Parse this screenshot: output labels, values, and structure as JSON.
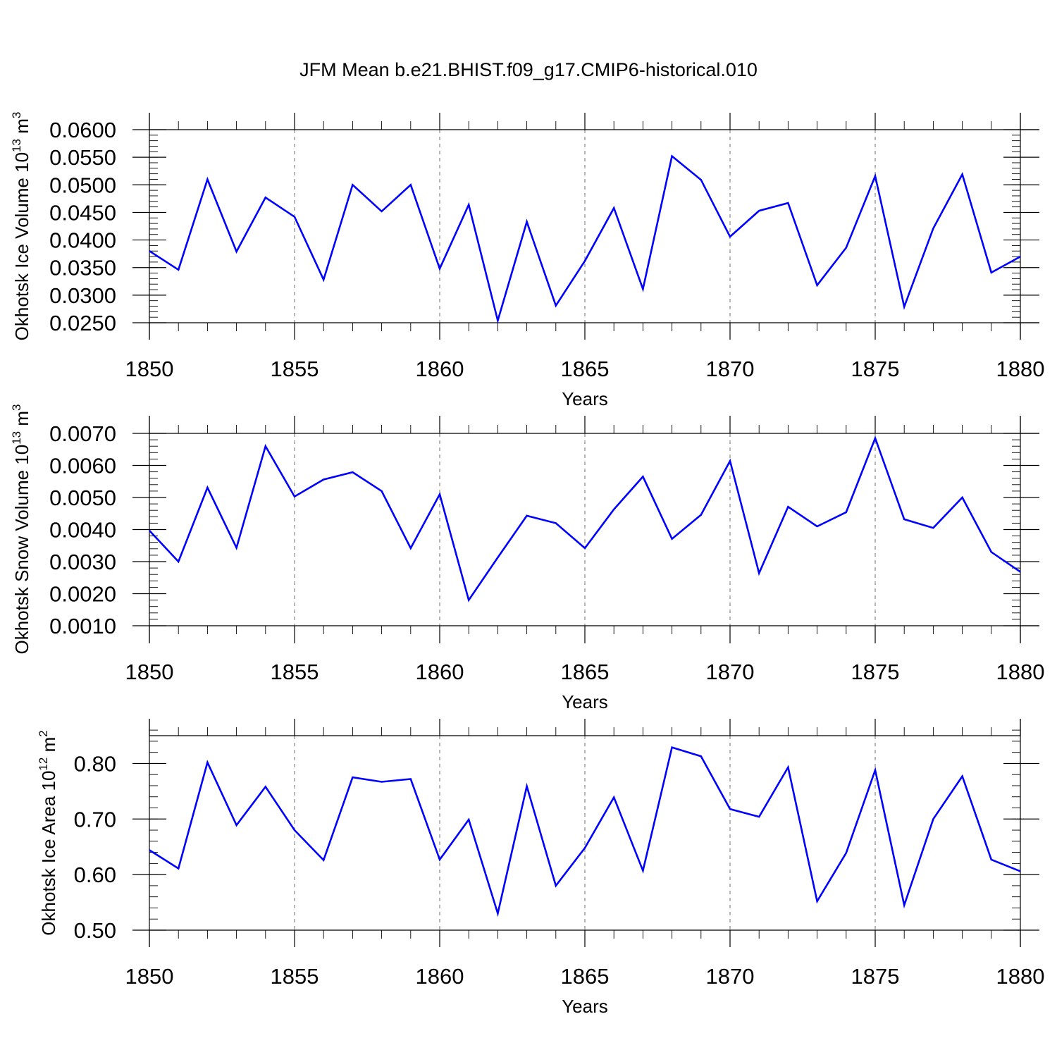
{
  "title": "JFM Mean b.e21.BHIST.f09_g17.CMIP6-historical.010",
  "chart_data": [
    {
      "type": "line",
      "xlabel": "Years",
      "ylabel": "Okhotsk Ice Volume 10",
      "ylabel_exp": "13",
      "ylabel_unit": " m",
      "ylabel_unit_exp": "3",
      "xlim": [
        1850,
        1880
      ],
      "ylim": [
        0.025,
        0.06
      ],
      "x_ticks": [
        1850,
        1855,
        1860,
        1865,
        1870,
        1875,
        1880
      ],
      "x_tick_labels": [
        "1850",
        "1855",
        "1860",
        "1865",
        "1870",
        "1875",
        "1880"
      ],
      "y_ticks": [
        0.025,
        0.03,
        0.035,
        0.04,
        0.045,
        0.05,
        0.055,
        0.06
      ],
      "y_tick_labels": [
        "0.0250",
        "0.0300",
        "0.0350",
        "0.0400",
        "0.0450",
        "0.0500",
        "0.0550",
        "0.0600"
      ],
      "y_minor_step": 0.001,
      "color": "#0000ff",
      "x": [
        1850,
        1851,
        1852,
        1853,
        1854,
        1855,
        1856,
        1857,
        1858,
        1859,
        1860,
        1861,
        1862,
        1863,
        1864,
        1865,
        1866,
        1867,
        1868,
        1869,
        1870,
        1871,
        1872,
        1873,
        1874,
        1875,
        1876,
        1877,
        1878,
        1879,
        1880
      ],
      "values": [
        0.038,
        0.0346,
        0.051,
        0.0379,
        0.0477,
        0.0442,
        0.0328,
        0.05,
        0.0452,
        0.05,
        0.0348,
        0.0464,
        0.0254,
        0.0433,
        0.0281,
        0.0362,
        0.0458,
        0.0311,
        0.0552,
        0.0509,
        0.0406,
        0.0453,
        0.0467,
        0.0318,
        0.0386,
        0.0516,
        0.0279,
        0.0421,
        0.0519,
        0.0341,
        0.037
      ]
    },
    {
      "type": "line",
      "xlabel": "Years",
      "ylabel": "Okhotsk Snow Volume 10",
      "ylabel_exp": "13",
      "ylabel_unit": " m",
      "ylabel_unit_exp": "3",
      "xlim": [
        1850,
        1880
      ],
      "ylim": [
        0.001,
        0.007
      ],
      "x_ticks": [
        1850,
        1855,
        1860,
        1865,
        1870,
        1875,
        1880
      ],
      "x_tick_labels": [
        "1850",
        "1855",
        "1860",
        "1865",
        "1870",
        "1875",
        "1880"
      ],
      "y_ticks": [
        0.001,
        0.002,
        0.003,
        0.004,
        0.005,
        0.006,
        0.007
      ],
      "y_tick_labels": [
        "0.0010",
        "0.0020",
        "0.0030",
        "0.0040",
        "0.0050",
        "0.0060",
        "0.0070"
      ],
      "y_minor_step": 0.0002,
      "color": "#0000ff",
      "x": [
        1850,
        1851,
        1852,
        1853,
        1854,
        1855,
        1856,
        1857,
        1858,
        1859,
        1860,
        1861,
        1862,
        1863,
        1864,
        1865,
        1866,
        1867,
        1868,
        1869,
        1870,
        1871,
        1872,
        1873,
        1874,
        1875,
        1876,
        1877,
        1878,
        1879,
        1880
      ],
      "values": [
        0.00397,
        0.003,
        0.00531,
        0.00343,
        0.0066,
        0.00503,
        0.00556,
        0.00579,
        0.0052,
        0.00342,
        0.0051,
        0.0018,
        0.00313,
        0.00443,
        0.0042,
        0.00342,
        0.00463,
        0.00565,
        0.00371,
        0.00446,
        0.00614,
        0.00264,
        0.00471,
        0.0041,
        0.00454,
        0.00685,
        0.00432,
        0.00405,
        0.005,
        0.0033,
        0.00268
      ]
    },
    {
      "type": "line",
      "xlabel": "Years",
      "ylabel": "Okhotsk Ice Area 10",
      "ylabel_exp": "12",
      "ylabel_unit": " m",
      "ylabel_unit_exp": "2",
      "xlim": [
        1850,
        1880
      ],
      "ylim": [
        0.5,
        0.85
      ],
      "x_ticks": [
        1850,
        1855,
        1860,
        1865,
        1870,
        1875,
        1880
      ],
      "x_tick_labels": [
        "1850",
        "1855",
        "1860",
        "1865",
        "1870",
        "1875",
        "1880"
      ],
      "y_ticks": [
        0.5,
        0.6,
        0.7,
        0.8
      ],
      "y_tick_labels": [
        "0.50",
        "0.60",
        "0.70",
        "0.80"
      ],
      "y_minor_step": 0.02,
      "color": "#0000ff",
      "x": [
        1850,
        1851,
        1852,
        1853,
        1854,
        1855,
        1856,
        1857,
        1858,
        1859,
        1860,
        1861,
        1862,
        1863,
        1864,
        1865,
        1866,
        1867,
        1868,
        1869,
        1870,
        1871,
        1872,
        1873,
        1874,
        1875,
        1876,
        1877,
        1878,
        1879,
        1880
      ],
      "values": [
        0.644,
        0.611,
        0.802,
        0.689,
        0.758,
        0.68,
        0.626,
        0.775,
        0.767,
        0.772,
        0.627,
        0.699,
        0.53,
        0.759,
        0.58,
        0.648,
        0.739,
        0.607,
        0.829,
        0.813,
        0.718,
        0.704,
        0.793,
        0.552,
        0.639,
        0.788,
        0.545,
        0.7,
        0.777,
        0.627,
        0.606
      ]
    }
  ]
}
